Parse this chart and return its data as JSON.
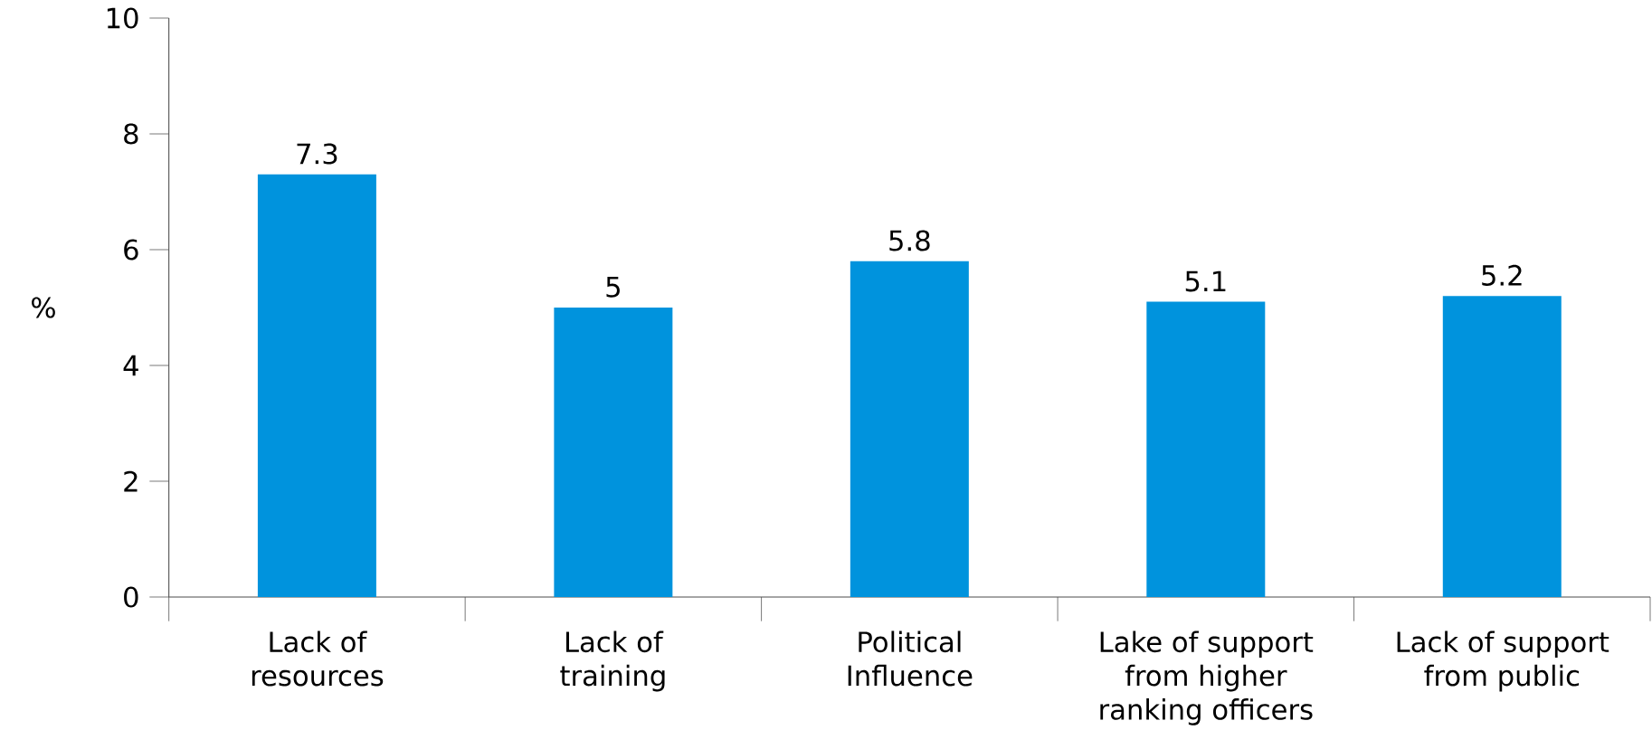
{
  "chart_data": {
    "type": "bar",
    "ylabel": "%",
    "categories": [
      "Lack of\nresources",
      "Lack of\ntraining",
      "Political\nInfluence",
      "Lake of support\nfrom higher\nranking officers",
      "Lack of support\nfrom public"
    ],
    "values": [
      7.3,
      5,
      5.8,
      5.1,
      5.2
    ],
    "color": "#0093dd",
    "ylim": [
      0,
      10
    ],
    "yticks": [
      0,
      2,
      4,
      6,
      8,
      10
    ],
    "data_labels": true
  }
}
